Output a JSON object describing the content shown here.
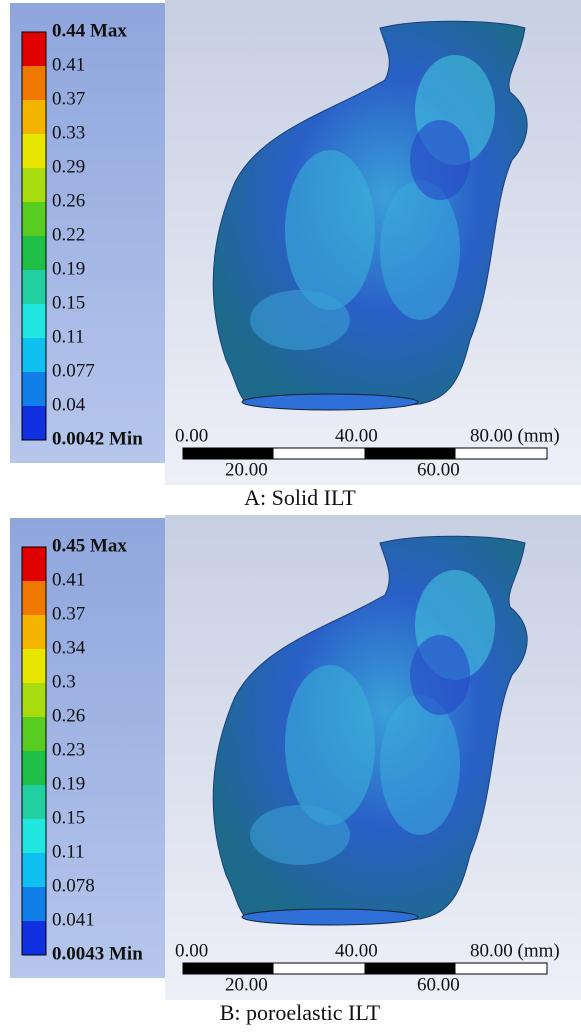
{
  "panels": [
    {
      "legend": [
        "0.44 Max",
        "0.41",
        "0.37",
        "0.33",
        "0.29",
        "0.26",
        "0.22",
        "0.19",
        "0.15",
        "0.11",
        "0.077",
        "0.04",
        "0.0042 Min"
      ],
      "scale_top": [
        "0.00",
        "40.00",
        "80.00 (mm)"
      ],
      "scale_bottom": [
        "20.00",
        "60.00"
      ],
      "caption": "A: Solid ILT"
    },
    {
      "legend": [
        "0.45 Max",
        "0.41",
        "0.37",
        "0.34",
        "0.3",
        "0.26",
        "0.23",
        "0.19",
        "0.15",
        "0.11",
        "0.078",
        "0.041",
        "0.0043 Min"
      ],
      "scale_top": [
        "0.00",
        "40.00",
        "80.00 (mm)"
      ],
      "scale_bottom": [
        "20.00",
        "60.00"
      ],
      "caption": "B: poroelastic ILT"
    }
  ]
}
